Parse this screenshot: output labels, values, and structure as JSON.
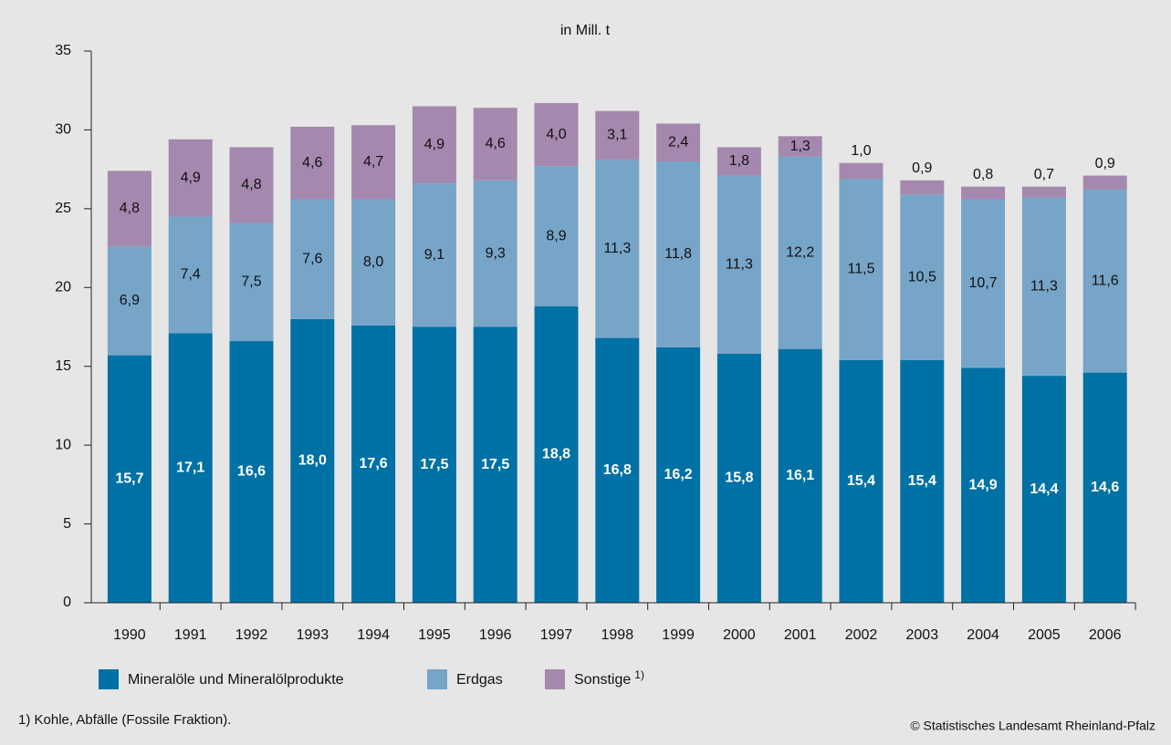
{
  "chart_data": {
    "type": "stacked_bar",
    "unit_label": "in Mill. t",
    "categories": [
      "1990",
      "1991",
      "1992",
      "1993",
      "1994",
      "1995",
      "1996",
      "1997",
      "1998",
      "1999",
      "2000",
      "2001",
      "2002",
      "2003",
      "2004",
      "2005",
      "2006"
    ],
    "series": [
      {
        "name": "Mineralöle und Mineralölprodukte",
        "color": "#0071a4",
        "values": [
          15.7,
          17.1,
          16.6,
          18.0,
          17.6,
          17.5,
          17.5,
          18.8,
          16.8,
          16.2,
          15.8,
          16.1,
          15.4,
          15.4,
          14.9,
          14.4,
          14.6
        ],
        "value_labels": [
          "15,7",
          "17,1",
          "16,6",
          "18,0",
          "17,6",
          "17,5",
          "17,5",
          "18,8",
          "16,8",
          "16,2",
          "15,8",
          "16,1",
          "15,4",
          "15,4",
          "14,9",
          "14,4",
          "14,6"
        ]
      },
      {
        "name": "Erdgas",
        "color": "#76a5c8",
        "values": [
          6.9,
          7.4,
          7.5,
          7.6,
          8.0,
          9.1,
          9.3,
          8.9,
          11.3,
          11.8,
          11.3,
          12.2,
          11.5,
          10.5,
          10.7,
          11.3,
          11.6
        ],
        "value_labels": [
          "6,9",
          "7,4",
          "7,5",
          "7,6",
          "8,0",
          "9,1",
          "9,3",
          "8,9",
          "11,3",
          "11,8",
          "11,3",
          "12,2",
          "11,5",
          "10,5",
          "10,7",
          "11,3",
          "11,6"
        ]
      },
      {
        "name": "Sonstige",
        "name_note": "1)",
        "color": "#a588ae",
        "values": [
          4.8,
          4.9,
          4.8,
          4.6,
          4.7,
          4.9,
          4.6,
          4.0,
          3.1,
          2.4,
          1.8,
          1.3,
          1.0,
          0.9,
          0.8,
          0.7,
          0.9
        ],
        "value_labels": [
          "4,8",
          "4,9",
          "4,8",
          "4,6",
          "4,7",
          "4,9",
          "4,6",
          "4,0",
          "3,1",
          "2,4",
          "1,8",
          "1,3",
          "1,0",
          "0,9",
          "0,8",
          "0,7",
          "0,9"
        ]
      }
    ],
    "ylim": [
      0,
      35
    ],
    "yticks": [
      0,
      5,
      10,
      15,
      20,
      25,
      30,
      35
    ],
    "grid": false,
    "legend": "bottom",
    "footnote": "1) Kohle, Abfälle (Fossile Fraktion).",
    "source": "© Statistisches Landesamt Rheinland-Pfalz"
  }
}
